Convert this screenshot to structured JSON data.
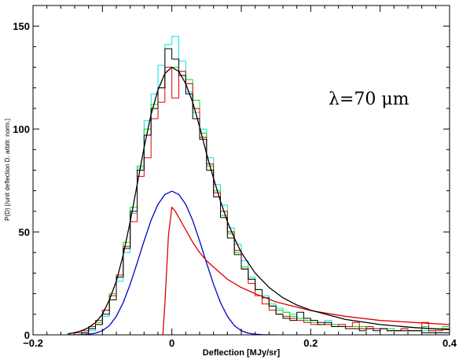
{
  "chart_data": {
    "type": "line",
    "title": "",
    "xlabel": "Deflection [MJy/sr]",
    "ylabel": "P(D) [/unit deflection D, arbitr. norm.]",
    "xlim": [
      -0.2,
      0.4
    ],
    "ylim": [
      0,
      160
    ],
    "xticks": [
      -0.2,
      0,
      0.2,
      0.4
    ],
    "xtick_labels": [
      "−0.2",
      "0",
      "0.2",
      "0.4"
    ],
    "yticks": [
      0,
      50,
      100,
      150
    ],
    "ytick_labels": [
      "0",
      "50",
      "100",
      "150"
    ],
    "grid": false,
    "annotation": "λ=70  μm",
    "series": [
      {
        "style": "step",
        "color": "#00e5e5",
        "x": [
          -0.18,
          -0.17,
          -0.16,
          -0.15,
          -0.14,
          -0.13,
          -0.12,
          -0.11,
          -0.1,
          -0.09,
          -0.08,
          -0.07,
          -0.06,
          -0.05,
          -0.04,
          -0.03,
          -0.02,
          -0.01,
          0,
          0.01,
          0.02,
          0.03,
          0.04,
          0.05,
          0.06,
          0.07,
          0.08,
          0.09,
          0.1,
          0.11,
          0.12,
          0.13,
          0.14,
          0.15,
          0.16,
          0.17,
          0.18,
          0.19,
          0.2,
          0.21,
          0.22,
          0.23,
          0.24,
          0.25,
          0.26,
          0.27,
          0.28,
          0.29,
          0.3,
          0.31,
          0.32,
          0.33,
          0.34,
          0.35,
          0.36,
          0.37,
          0.38,
          0.39
        ],
        "y": [
          0,
          0,
          0,
          0,
          0,
          1,
          2,
          5,
          9,
          17,
          26,
          40,
          59,
          81,
          104,
          117,
          131,
          141,
          145,
          133,
          118,
          108,
          100,
          86,
          73,
          63,
          52,
          44,
          36,
          28,
          22,
          19,
          15,
          13,
          11,
          10,
          8,
          7,
          7,
          6,
          7,
          5,
          5,
          4,
          4,
          3,
          3,
          3,
          3,
          2,
          2,
          2,
          2,
          2,
          2,
          1,
          1,
          1
        ]
      },
      {
        "style": "step",
        "color": "#00e000",
        "x": [
          -0.18,
          -0.17,
          -0.16,
          -0.15,
          -0.14,
          -0.13,
          -0.12,
          -0.11,
          -0.1,
          -0.09,
          -0.08,
          -0.07,
          -0.06,
          -0.05,
          -0.04,
          -0.03,
          -0.02,
          -0.01,
          0,
          0.01,
          0.02,
          0.03,
          0.04,
          0.05,
          0.06,
          0.07,
          0.08,
          0.09,
          0.1,
          0.11,
          0.12,
          0.13,
          0.14,
          0.15,
          0.16,
          0.17,
          0.18,
          0.19,
          0.2,
          0.21,
          0.22,
          0.23,
          0.24,
          0.25,
          0.26,
          0.27,
          0.28,
          0.29,
          0.3,
          0.31,
          0.32,
          0.33,
          0.34,
          0.35,
          0.36,
          0.37,
          0.38,
          0.39
        ],
        "y": [
          0,
          0,
          0,
          0,
          0,
          1,
          3,
          6,
          12,
          20,
          29,
          45,
          62,
          82,
          100,
          112,
          120,
          130,
          130,
          128,
          124,
          114,
          98,
          82,
          70,
          58,
          49,
          40,
          33,
          27,
          22,
          18,
          14,
          12,
          11,
          9,
          8,
          7,
          6,
          6,
          5,
          5,
          5,
          4,
          4,
          4,
          3,
          3,
          3,
          3,
          2,
          3,
          2,
          2,
          4,
          2,
          3,
          4
        ]
      },
      {
        "style": "step",
        "color": "#e00000",
        "x": [
          -0.18,
          -0.17,
          -0.16,
          -0.15,
          -0.14,
          -0.13,
          -0.12,
          -0.11,
          -0.1,
          -0.09,
          -0.08,
          -0.07,
          -0.06,
          -0.05,
          -0.04,
          -0.03,
          -0.02,
          -0.01,
          0,
          0.01,
          0.02,
          0.03,
          0.04,
          0.05,
          0.06,
          0.07,
          0.08,
          0.09,
          0.1,
          0.11,
          0.12,
          0.13,
          0.14,
          0.15,
          0.16,
          0.17,
          0.18,
          0.19,
          0.2,
          0.21,
          0.22,
          0.23,
          0.24,
          0.25,
          0.26,
          0.27,
          0.28,
          0.29,
          0.3,
          0.31,
          0.32,
          0.33,
          0.34,
          0.35,
          0.36,
          0.37,
          0.38,
          0.39
        ],
        "y": [
          0,
          0,
          0,
          0,
          1,
          2,
          4,
          7,
          12,
          19,
          29,
          43,
          55,
          77,
          86,
          105,
          113,
          130,
          115,
          128,
          122,
          110,
          96,
          83,
          69,
          60,
          50,
          41,
          32,
          25,
          19,
          15,
          12,
          10,
          9,
          8,
          7,
          6,
          5,
          6,
          5,
          4,
          5,
          4,
          6,
          3,
          4,
          3,
          3,
          2,
          2,
          3,
          2,
          2,
          6,
          2,
          2,
          3
        ]
      },
      {
        "style": "step",
        "color": "#000000",
        "x": [
          -0.18,
          -0.17,
          -0.16,
          -0.15,
          -0.14,
          -0.13,
          -0.12,
          -0.11,
          -0.1,
          -0.09,
          -0.08,
          -0.07,
          -0.06,
          -0.05,
          -0.04,
          -0.03,
          -0.02,
          -0.01,
          0,
          0.01,
          0.02,
          0.03,
          0.04,
          0.05,
          0.06,
          0.07,
          0.08,
          0.09,
          0.1,
          0.11,
          0.12,
          0.13,
          0.14,
          0.15,
          0.16,
          0.17,
          0.18,
          0.19,
          0.2,
          0.21,
          0.22,
          0.23,
          0.24,
          0.25,
          0.26,
          0.27,
          0.28,
          0.29,
          0.3,
          0.31,
          0.32,
          0.33,
          0.34,
          0.35,
          0.36,
          0.37,
          0.38,
          0.39
        ],
        "y": [
          0,
          0,
          0,
          0,
          0,
          1,
          3,
          5,
          10,
          17,
          28,
          42,
          60,
          80,
          97,
          110,
          120,
          139,
          134,
          126,
          117,
          105,
          95,
          80,
          67,
          57,
          47,
          39,
          32,
          27,
          22,
          18,
          14,
          10,
          8,
          7,
          11,
          8,
          7,
          5,
          6,
          4,
          4,
          3,
          3,
          2,
          3,
          2,
          3,
          2,
          2,
          2,
          2,
          2,
          1,
          1,
          1,
          1
        ]
      },
      {
        "style": "curve",
        "color": "#0000cc",
        "x": [
          -0.15,
          -0.14,
          -0.13,
          -0.12,
          -0.11,
          -0.1,
          -0.09,
          -0.08,
          -0.07,
          -0.06,
          -0.05,
          -0.04,
          -0.03,
          -0.02,
          -0.01,
          0,
          0.01,
          0.02,
          0.03,
          0.04,
          0.05,
          0.06,
          0.07,
          0.08,
          0.09,
          0.1,
          0.11,
          0.12,
          0.13,
          0.14,
          0.15
        ],
        "y": [
          0,
          0,
          0.1,
          0.3,
          0.8,
          2,
          4.5,
          9,
          15.7,
          24.6,
          34.9,
          45.6,
          55.6,
          63.4,
          68.2,
          69.8,
          68.2,
          63.4,
          55.6,
          45.6,
          34.9,
          24.6,
          15.7,
          9,
          4.5,
          2,
          0.8,
          0.3,
          0.1,
          0,
          0
        ]
      },
      {
        "style": "curve",
        "color": "#e00000",
        "x": [
          -0.013,
          -0.01,
          -0.005,
          0,
          0.005,
          0.01,
          0.015,
          0.02,
          0.03,
          0.04,
          0.05,
          0.06,
          0.08,
          0.1,
          0.12,
          0.15,
          0.2,
          0.25,
          0.3,
          0.35,
          0.4
        ],
        "y": [
          0,
          15,
          48,
          62,
          60,
          57,
          54,
          51,
          45,
          40,
          36,
          33,
          27,
          23,
          20,
          16,
          11.8,
          9,
          7,
          6,
          5
        ]
      },
      {
        "style": "curve",
        "color": "#000000",
        "x": [
          -0.15,
          -0.14,
          -0.13,
          -0.12,
          -0.11,
          -0.1,
          -0.09,
          -0.08,
          -0.07,
          -0.06,
          -0.05,
          -0.04,
          -0.03,
          -0.02,
          -0.01,
          0,
          0.01,
          0.02,
          0.03,
          0.04,
          0.05,
          0.06,
          0.07,
          0.08,
          0.09,
          0.1,
          0.12,
          0.14,
          0.16,
          0.18,
          0.2,
          0.25,
          0.3,
          0.35,
          0.4
        ],
        "y": [
          0.5,
          1,
          2,
          3.5,
          6,
          10,
          17,
          26,
          39,
          55,
          73,
          91,
          107,
          119,
          127,
          130,
          128,
          122,
          113,
          101,
          88,
          76,
          65,
          55,
          47,
          40,
          30,
          23,
          18,
          14.5,
          12,
          7.5,
          5,
          3.5,
          2.5
        ]
      }
    ]
  }
}
